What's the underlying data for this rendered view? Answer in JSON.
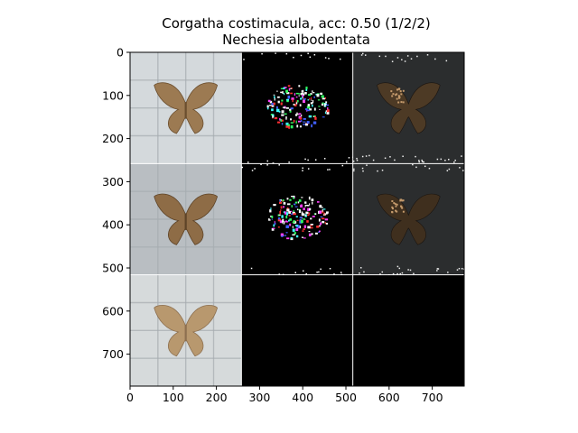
{
  "chart_data": {
    "type": "image-grid",
    "title": "Corgatha costimacula, acc: 0.50 (1/2/2)",
    "subtitle": "Nechesia albodentata",
    "xlim": [
      0,
      774
    ],
    "ylim": [
      774,
      0
    ],
    "x_ticks": [
      0,
      100,
      200,
      300,
      400,
      500,
      600,
      700
    ],
    "y_ticks": [
      0,
      100,
      200,
      300,
      400,
      500,
      600,
      700
    ],
    "grid": {
      "rows": 3,
      "cols": 3,
      "cell_size": 258
    },
    "panels": [
      {
        "row": 0,
        "col": 0,
        "kind": "photo",
        "background": "#d4d9dc",
        "moth": "#9c7a52",
        "moth_dark": "#6b4e2e"
      },
      {
        "row": 0,
        "col": 1,
        "kind": "mask",
        "background": "#000000"
      },
      {
        "row": 0,
        "col": 2,
        "kind": "masked-photo",
        "background": "#2b2d2e",
        "moth": "#4d3a25"
      },
      {
        "row": 1,
        "col": 0,
        "kind": "photo",
        "background": "#b9bec2",
        "moth": "#8e6c46",
        "moth_dark": "#5e4428"
      },
      {
        "row": 1,
        "col": 1,
        "kind": "mask",
        "background": "#000000"
      },
      {
        "row": 1,
        "col": 2,
        "kind": "masked-photo",
        "background": "#2b2d2e",
        "moth": "#3f2f1e"
      },
      {
        "row": 2,
        "col": 0,
        "kind": "photo",
        "background": "#d6dadb",
        "moth": "#b8986e",
        "moth_dark": "#8d7050"
      },
      {
        "row": 2,
        "col": 1,
        "kind": "blank",
        "background": "#000000"
      },
      {
        "row": 2,
        "col": 2,
        "kind": "blank",
        "background": "#000000"
      }
    ]
  }
}
